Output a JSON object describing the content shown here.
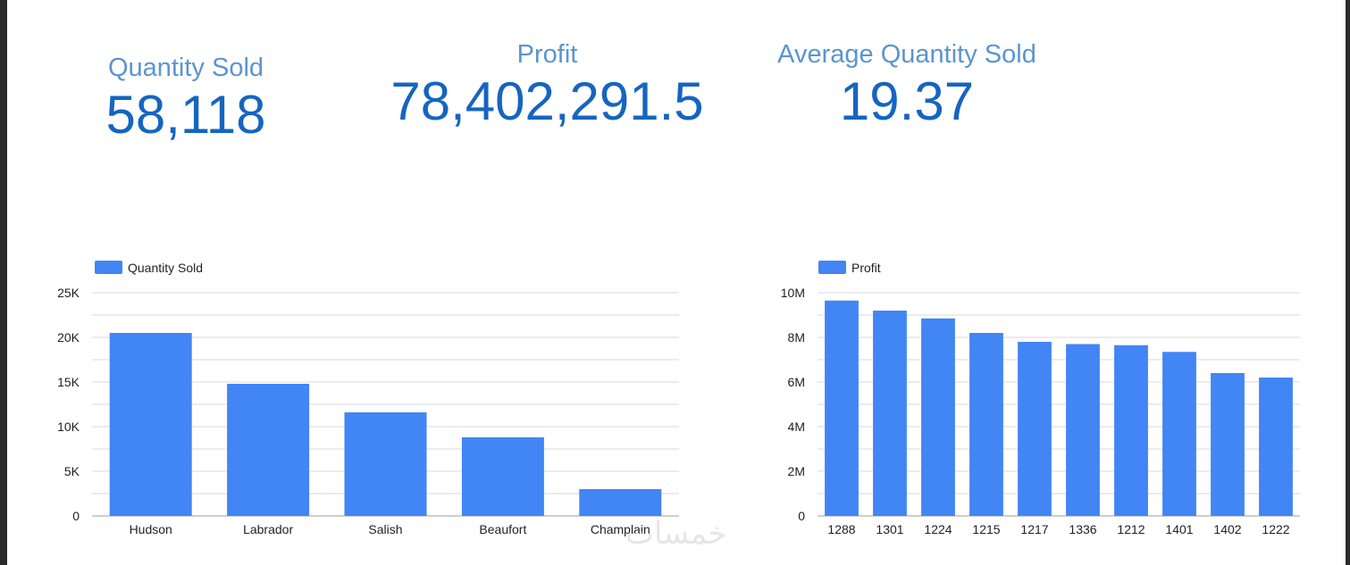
{
  "scorecards": {
    "quantity_sold": {
      "label": "Quantity Sold",
      "value": "58,118"
    },
    "profit": {
      "label": "Profit",
      "value": "78,402,291.5"
    },
    "average_quantity_sold": {
      "label": "Average Quantity Sold",
      "value": "19.37"
    }
  },
  "colors": {
    "bar": "#4285f4",
    "scorecard_value": "#1565c0",
    "scorecard_label": "#5b95d0",
    "grid": "#d9d9d9"
  },
  "watermark": "خمسات",
  "chart_data": [
    {
      "type": "bar",
      "title": "",
      "legend": "Quantity Sold",
      "legend_position": "top-left",
      "categories": [
        "Hudson",
        "Labrador",
        "Salish",
        "Beaufort",
        "Champlain"
      ],
      "values": [
        20500,
        14800,
        11600,
        8800,
        3000
      ],
      "ylim": [
        0,
        25000
      ],
      "y_ticks": [
        0,
        5000,
        10000,
        15000,
        20000,
        25000
      ],
      "y_tick_labels": [
        "0",
        "5K",
        "10K",
        "15K",
        "20K",
        "25K"
      ],
      "grid": true
    },
    {
      "type": "bar",
      "title": "",
      "legend": "Profit",
      "legend_position": "top-left",
      "categories": [
        "1288",
        "1301",
        "1224",
        "1215",
        "1217",
        "1336",
        "1212",
        "1401",
        "1402",
        "1222"
      ],
      "values": [
        9650000,
        9200000,
        8850000,
        8200000,
        7800000,
        7700000,
        7650000,
        7350000,
        6400000,
        6200000
      ],
      "ylim": [
        0,
        10000000
      ],
      "y_ticks": [
        0,
        2000000,
        4000000,
        6000000,
        8000000,
        10000000
      ],
      "y_tick_labels": [
        "0",
        "2M",
        "4M",
        "6M",
        "8M",
        "10M"
      ],
      "grid": true
    }
  ]
}
